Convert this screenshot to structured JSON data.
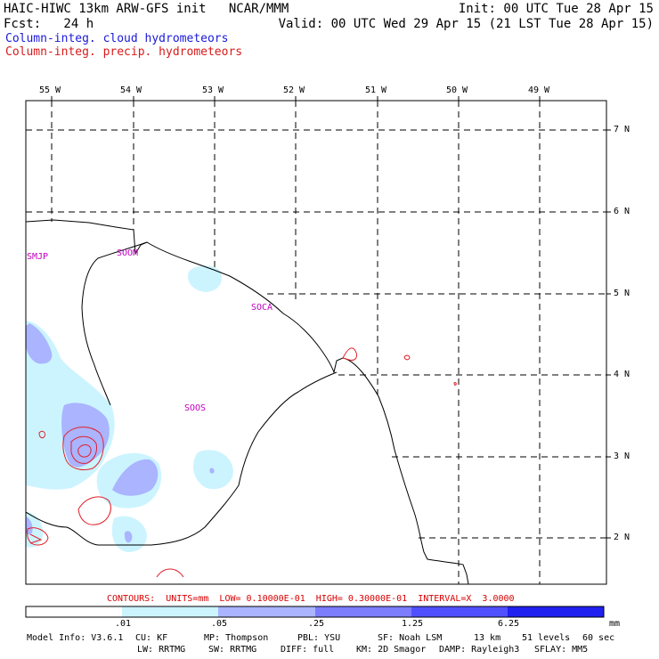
{
  "header": {
    "model_line": "HAIC-HIWC 13km ARW-GFS init   NCAR/MMM",
    "fcst_line": "Fcst:   24 h",
    "init_line": "Init: 00 UTC Tue 28 Apr 15",
    "valid_line": "Valid: 00 UTC Wed 29 Apr 15 (21 LST Tue 28 Apr 15)",
    "field_cloud": "Column-integ. cloud hydrometeors",
    "field_precip": "Column-integ. precip. hydrometeors"
  },
  "axes": {
    "longitudes": [
      "55 W",
      "54 W",
      "53 W",
      "52 W",
      "51 W",
      "50 W",
      "49 W"
    ],
    "latitudes": [
      "7 N",
      "6 N",
      "5 N",
      "4 N",
      "3 N",
      "2 N"
    ]
  },
  "stations": [
    "SMJP",
    "SOOM",
    "SOCA",
    "SOOS"
  ],
  "contours_line": "CONTOURS:  UNITS=mm  LOW= 0.10000E-01  HIGH= 0.30000E-01  INTERVAL=X  3.0000",
  "colorbar": {
    "labels": [
      ".01",
      ".05",
      ".25",
      "1.25",
      "6.25"
    ],
    "units": "mm",
    "colors": [
      "#ffffff",
      "#ccf4ff",
      "#aab4ff",
      "#7c7cff",
      "#5050ff",
      "#2020f0"
    ]
  },
  "footer": {
    "model_info": "Model Info: V3.6.1",
    "cu": "CU: KF",
    "mp": "MP: Thompson",
    "pbl": "PBL: YSU",
    "sf": "SF: Noah LSM",
    "res": "13 km",
    "levels": "51 levels",
    "dt": "60 sec",
    "lw": "LW: RRTMG",
    "sw": "SW: RRTMG",
    "diff": "DIFF: full",
    "km": "KM: 2D Smagor",
    "damp": "DAMP: Rayleigh3",
    "sflay": "SFLAY: MM5"
  }
}
